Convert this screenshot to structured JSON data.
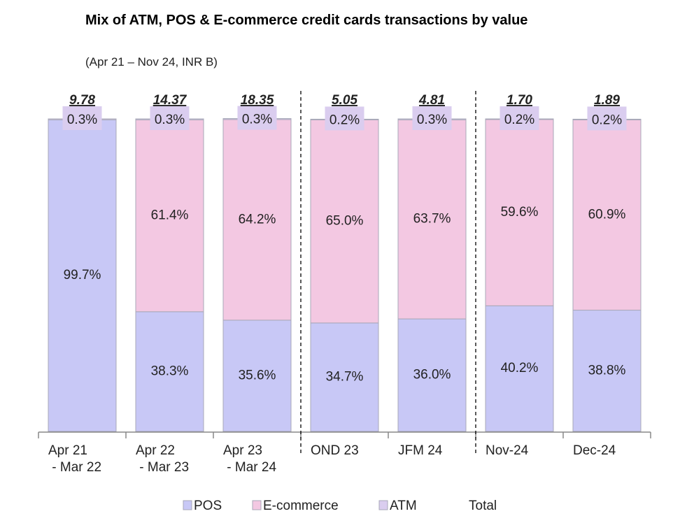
{
  "chart_data": {
    "type": "stacked_bar_100",
    "title": "Mix of ATM, POS & E-commerce credit cards transactions by value",
    "subtitle": "(Apr 21 – Nov 24, INR B)",
    "categories": [
      "Apr 21\n - Mar 22",
      "Apr 22\n - Mar 23",
      "Apr 23\n - Mar 24",
      "OND 23",
      "JFM 24",
      "Nov-24",
      "Dec-24"
    ],
    "series": [
      {
        "name": "POS",
        "color": "#c8c8f6",
        "values": [
          99.7,
          38.3,
          35.6,
          34.7,
          36.0,
          40.2,
          38.8
        ],
        "value_labels": [
          "99.7%",
          "38.3%",
          "35.6%",
          "34.7%",
          "36.0%",
          "40.2%",
          "38.8%"
        ]
      },
      {
        "name": "E-commerce",
        "color": "#f3c8e2",
        "values": [
          null,
          61.4,
          64.2,
          65.0,
          63.7,
          59.6,
          60.9
        ],
        "value_labels": [
          null,
          "61.4%",
          "64.2%",
          "65.0%",
          "63.7%",
          "59.6%",
          "60.9%"
        ]
      },
      {
        "name": "ATM",
        "color": "#dacdef",
        "values": [
          0.3,
          0.3,
          0.3,
          0.2,
          0.3,
          0.2,
          0.2
        ],
        "value_labels": [
          "0.3%",
          "0.3%",
          "0.3%",
          "0.2%",
          "0.3%",
          "0.2%",
          "0.2%"
        ]
      }
    ],
    "totals": {
      "name": "Total",
      "values": [
        9.78,
        14.37,
        18.35,
        5.05,
        4.81,
        1.7,
        1.89
      ],
      "value_labels": [
        "9.78",
        "14.37",
        "18.35",
        "5.05",
        "4.81",
        "1.70",
        "1.89"
      ]
    },
    "separators_after": [
      2,
      4
    ],
    "ylim": [
      0,
      100
    ]
  }
}
